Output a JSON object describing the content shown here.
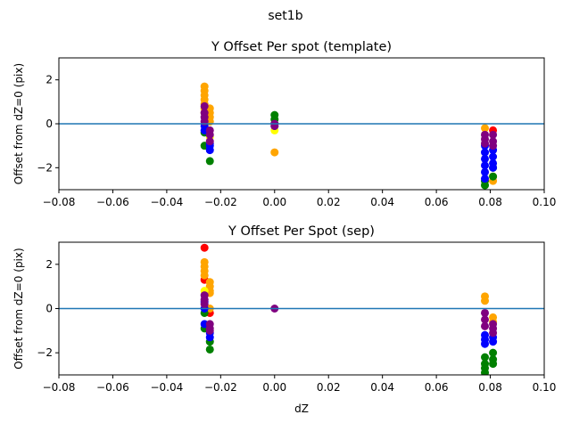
{
  "suptitle": "set1b",
  "colors": {
    "red": "#ff0000",
    "orange": "#ffa500",
    "yellow": "#ffff00",
    "green": "#008000",
    "blue": "#0000ff",
    "purple": "#800080",
    "hline": "#1f77b4"
  },
  "chart_data": [
    {
      "type": "scatter",
      "title": "Y Offset Per spot (template)",
      "xlabel": "",
      "ylabel": "Offset from dZ=0 (pix)",
      "xlim": [
        -0.08,
        0.1
      ],
      "ylim": [
        -3,
        3
      ],
      "xticks": [
        "−0.08",
        "−0.06",
        "−0.04",
        "−0.02",
        "0.00",
        "0.02",
        "0.04",
        "0.06",
        "0.08",
        "0.10"
      ],
      "yticks": [
        "−2",
        "0",
        "2"
      ],
      "hline": 0,
      "series": [
        {
          "name": "orange",
          "points": [
            [
              -0.026,
              1.7
            ],
            [
              -0.026,
              1.5
            ],
            [
              -0.026,
              1.3
            ],
            [
              -0.026,
              1.1
            ],
            [
              -0.026,
              0.9
            ],
            [
              -0.026,
              0.7
            ],
            [
              -0.026,
              0.5
            ],
            [
              -0.024,
              0.7
            ],
            [
              -0.024,
              0.5
            ],
            [
              -0.024,
              0.3
            ],
            [
              -0.024,
              0.1
            ],
            [
              0,
              -1.3
            ],
            [
              0.078,
              -0.2
            ],
            [
              0.081,
              -2.6
            ],
            [
              0.081,
              -2.4
            ]
          ]
        },
        {
          "name": "yellow",
          "points": [
            [
              -0.024,
              -0.6
            ],
            [
              0,
              -0.3
            ]
          ]
        },
        {
          "name": "green",
          "points": [
            [
              -0.026,
              -1.0
            ],
            [
              -0.026,
              -0.4
            ],
            [
              -0.024,
              -1.7
            ],
            [
              0,
              0.4
            ],
            [
              0,
              0.2
            ],
            [
              0,
              0
            ],
            [
              0.078,
              -2.8
            ],
            [
              0.078,
              -2.6
            ],
            [
              0.081,
              -2.4
            ],
            [
              0.081,
              -2.0
            ]
          ]
        },
        {
          "name": "blue",
          "points": [
            [
              -0.026,
              -0.1
            ],
            [
              -0.026,
              -0.3
            ],
            [
              -0.024,
              -1.0
            ],
            [
              -0.024,
              -1.2
            ],
            [
              -0.024,
              -0.9
            ],
            [
              0,
              -0.1
            ],
            [
              0.078,
              -1.0
            ],
            [
              0.078,
              -1.3
            ],
            [
              0.078,
              -1.6
            ],
            [
              0.078,
              -1.9
            ],
            [
              0.078,
              -2.2
            ],
            [
              0.078,
              -2.5
            ],
            [
              0.081,
              -1.2
            ],
            [
              0.081,
              -1.5
            ],
            [
              0.081,
              -1.8
            ],
            [
              0.081,
              -2.0
            ]
          ]
        },
        {
          "name": "red",
          "points": [
            [
              0.081,
              -0.3
            ]
          ]
        },
        {
          "name": "purple",
          "points": [
            [
              -0.026,
              0.8
            ],
            [
              -0.026,
              0.5
            ],
            [
              -0.026,
              0.3
            ],
            [
              -0.026,
              0.1
            ],
            [
              -0.024,
              -0.3
            ],
            [
              -0.024,
              -0.5
            ],
            [
              -0.024,
              -0.8
            ],
            [
              0,
              0
            ],
            [
              0,
              -0.1
            ],
            [
              0.078,
              -0.5
            ],
            [
              0.078,
              -0.7
            ],
            [
              0.078,
              -0.9
            ],
            [
              0.081,
              -0.5
            ],
            [
              0.081,
              -0.8
            ],
            [
              0.081,
              -1.0
            ]
          ]
        }
      ]
    },
    {
      "type": "scatter",
      "title": "Y Offset Per Spot (sep)",
      "xlabel": "dZ",
      "ylabel": "Offset from dZ=0 (pix)",
      "xlim": [
        -0.08,
        0.1
      ],
      "ylim": [
        -3,
        3
      ],
      "xticks": [
        "−0.08",
        "−0.06",
        "−0.04",
        "−0.02",
        "0.00",
        "0.02",
        "0.04",
        "0.06",
        "0.08",
        "0.10"
      ],
      "yticks": [
        "−2",
        "0",
        "2"
      ],
      "hline": 0,
      "series": [
        {
          "name": "red",
          "points": [
            [
              -0.026,
              2.75
            ],
            [
              -0.026,
              1.3
            ],
            [
              -0.024,
              -0.2
            ]
          ]
        },
        {
          "name": "orange",
          "points": [
            [
              -0.026,
              2.1
            ],
            [
              -0.026,
              1.9
            ],
            [
              -0.026,
              1.7
            ],
            [
              -0.026,
              1.5
            ],
            [
              -0.024,
              1.2
            ],
            [
              -0.024,
              1.0
            ],
            [
              -0.024,
              0.8
            ],
            [
              -0.024,
              0.7
            ],
            [
              -0.024,
              0
            ],
            [
              0.078,
              0.55
            ],
            [
              0.078,
              0.35
            ],
            [
              0.081,
              -0.4
            ],
            [
              0.081,
              -0.6
            ]
          ]
        },
        {
          "name": "yellow",
          "points": [
            [
              -0.026,
              0.8
            ]
          ]
        },
        {
          "name": "green",
          "points": [
            [
              -0.026,
              -0.9
            ],
            [
              -0.026,
              -0.2
            ],
            [
              -0.024,
              -1.5
            ],
            [
              -0.024,
              -1.85
            ],
            [
              0.078,
              -2.2
            ],
            [
              0.078,
              -2.5
            ],
            [
              0.078,
              -2.7
            ],
            [
              0.078,
              -2.9
            ],
            [
              0.081,
              -2.0
            ],
            [
              0.081,
              -2.3
            ],
            [
              0.081,
              -2.5
            ]
          ]
        },
        {
          "name": "blue",
          "points": [
            [
              -0.026,
              -0.7
            ],
            [
              -0.026,
              0.3
            ],
            [
              -0.026,
              0
            ],
            [
              -0.024,
              -1.1
            ],
            [
              -0.024,
              -1.3
            ],
            [
              0.078,
              -1.2
            ],
            [
              0.078,
              -1.4
            ],
            [
              0.078,
              -1.6
            ],
            [
              0.081,
              -1.3
            ],
            [
              0.081,
              -1.5
            ]
          ]
        },
        {
          "name": "purple",
          "points": [
            [
              -0.026,
              0.6
            ],
            [
              -0.026,
              0.4
            ],
            [
              -0.026,
              0.2
            ],
            [
              -0.024,
              -0.7
            ],
            [
              -0.024,
              -0.9
            ],
            [
              -0.024,
              -1.0
            ],
            [
              0,
              0
            ],
            [
              0.078,
              -0.2
            ],
            [
              0.078,
              -0.5
            ],
            [
              0.078,
              -0.8
            ],
            [
              0.081,
              -0.7
            ],
            [
              0.081,
              -0.9
            ],
            [
              0.081,
              -1.1
            ]
          ]
        }
      ]
    }
  ]
}
